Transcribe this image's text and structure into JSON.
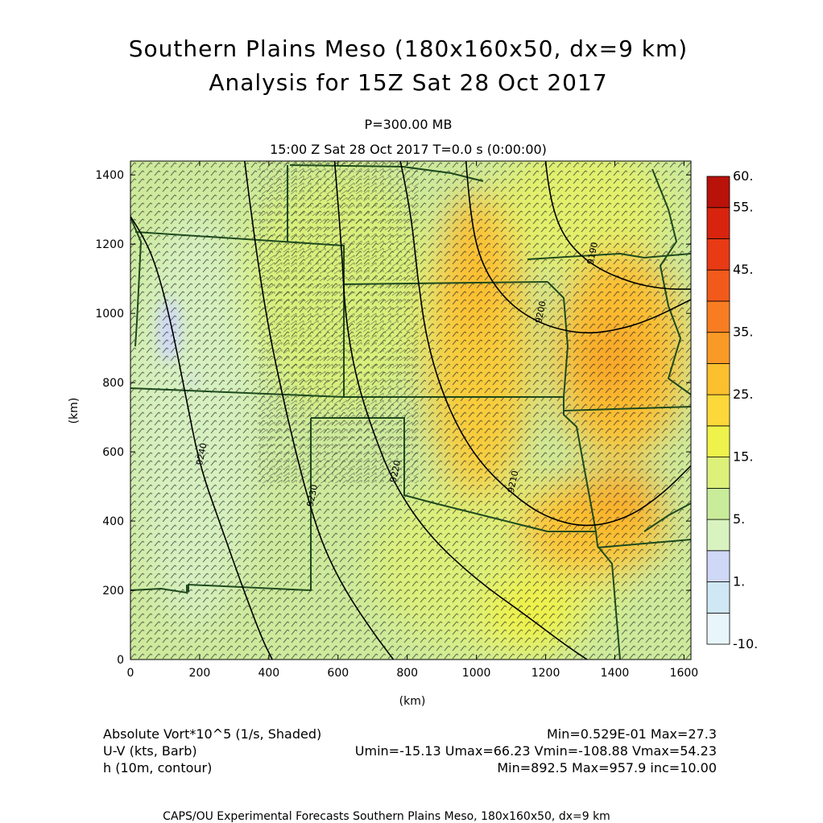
{
  "header": {
    "title_line1": "Southern Plains Meso (180x160x50, dx=9 km)",
    "title_line2": "Analysis for 15Z Sat 28 Oct 2017",
    "level": "P=300.00 MB",
    "time_line": "15:00 Z Sat 28 Oct 2017    T=0.0 s (0:00:00)"
  },
  "info": {
    "field1_label": "Absolute Vort*10^5 (1/s, Shaded)",
    "field1_stats": "Min=0.529E-01 Max=27.3",
    "field2_label": "U-V (kts, Barb)",
    "field2_stats": "Umin=-15.13 Umax=66.23 Vmin=-108.88 Vmax=54.23",
    "field3_label": "h (10m, contour)",
    "field3_stats": "Min=892.5 Max=957.9 inc=10.00"
  },
  "footer": "CAPS/OU Experimental Forecasts  Southern Plains Meso, 180x160x50, dx=9 km",
  "chart_data": {
    "type": "heatmap",
    "xlabel": "(km)",
    "ylabel": "(km)",
    "xlim": [
      0,
      1620
    ],
    "ylim": [
      0,
      1440
    ],
    "x_ticks": [
      "0",
      "200",
      "400",
      "600",
      "800",
      "1000",
      "1200",
      "1400",
      "1600"
    ],
    "y_ticks": [
      "0",
      "200",
      "400",
      "600",
      "800",
      "1000",
      "1200",
      "1400"
    ],
    "colorbar": {
      "labels": [
        "-10.",
        "1.",
        "5.",
        "15.",
        "25.",
        "35.",
        "45.",
        "55.",
        "60."
      ],
      "colors": [
        "#e8f6fb",
        "#cfe8f4",
        "#cfd8f6",
        "#d8f2c0",
        "#c9ec9a",
        "#dcf07a",
        "#eef24a",
        "#fcd83a",
        "#fcbf2e",
        "#fa9a26",
        "#f87d22",
        "#f25a1c",
        "#e83a14",
        "#d8240e",
        "#b8120a"
      ]
    },
    "contours": [
      {
        "label": "9240",
        "path": [
          [
            0,
            1280
          ],
          [
            40,
            1220
          ],
          [
            80,
            1120
          ],
          [
            120,
            960
          ],
          [
            160,
            760
          ],
          [
            200,
            560
          ],
          [
            260,
            390
          ],
          [
            320,
            220
          ],
          [
            380,
            60
          ],
          [
            410,
            0
          ]
        ]
      },
      {
        "label": "9230",
        "path": [
          [
            330,
            1440
          ],
          [
            360,
            1200
          ],
          [
            400,
            950
          ],
          [
            440,
            760
          ],
          [
            480,
            590
          ],
          [
            520,
            440
          ],
          [
            560,
            320
          ],
          [
            620,
            200
          ],
          [
            700,
            80
          ],
          [
            760,
            0
          ]
        ]
      },
      {
        "label": "9220",
        "path": [
          [
            590,
            1440
          ],
          [
            610,
            1200
          ],
          [
            620,
            1000
          ],
          [
            650,
            820
          ],
          [
            700,
            660
          ],
          [
            760,
            510
          ],
          [
            860,
            360
          ],
          [
            1000,
            230
          ],
          [
            1140,
            130
          ],
          [
            1260,
            40
          ],
          [
            1320,
            0
          ]
        ]
      },
      {
        "label": "9210",
        "path": [
          [
            780,
            1440
          ],
          [
            810,
            1300
          ],
          [
            830,
            1100
          ],
          [
            860,
            900
          ],
          [
            920,
            720
          ],
          [
            1000,
            580
          ],
          [
            1100,
            480
          ],
          [
            1200,
            410
          ],
          [
            1320,
            380
          ],
          [
            1440,
            410
          ],
          [
            1540,
            480
          ],
          [
            1620,
            560
          ]
        ]
      },
      {
        "label": "9200",
        "path": [
          [
            970,
            1440
          ],
          [
            980,
            1300
          ],
          [
            1010,
            1150
          ],
          [
            1080,
            1040
          ],
          [
            1180,
            970
          ],
          [
            1300,
            940
          ],
          [
            1400,
            950
          ],
          [
            1500,
            980
          ],
          [
            1620,
            1040
          ]
        ]
      },
      {
        "label": "9190",
        "path": [
          [
            1200,
            1440
          ],
          [
            1210,
            1340
          ],
          [
            1250,
            1220
          ],
          [
            1330,
            1140
          ],
          [
            1440,
            1090
          ],
          [
            1540,
            1070
          ],
          [
            1620,
            1070
          ]
        ]
      }
    ]
  }
}
